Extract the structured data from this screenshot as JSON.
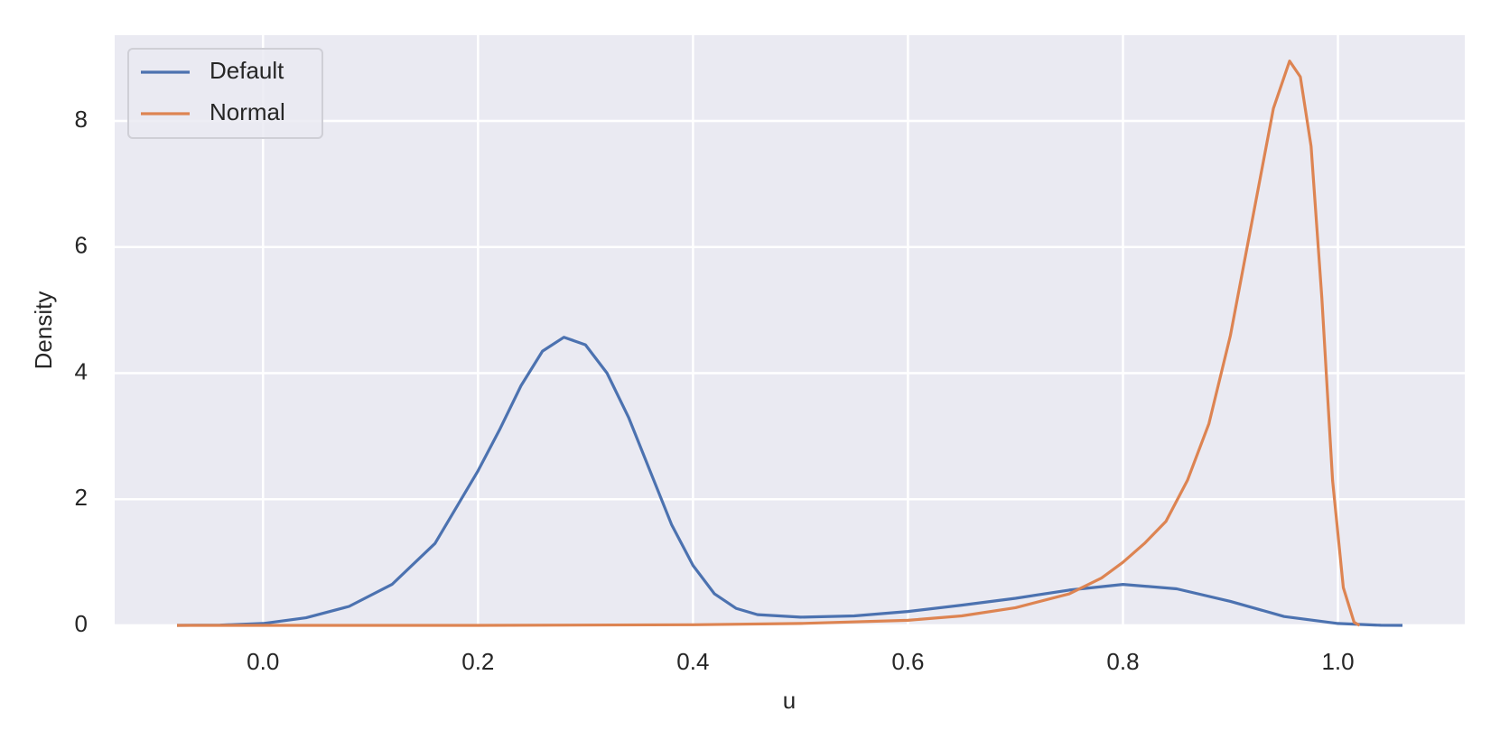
{
  "chart_data": {
    "type": "line",
    "xlabel": "u",
    "ylabel": "Density",
    "xlim": [
      -0.138,
      1.118
    ],
    "ylim": [
      0,
      9.36
    ],
    "xticks": [
      {
        "value": 0,
        "label": "0.0"
      },
      0.2,
      0.4,
      0.6,
      0.8,
      {
        "value": 1,
        "label": "1.0"
      }
    ],
    "yticks": [
      0,
      2,
      4,
      6,
      8
    ],
    "grid": true,
    "legend": "upper left",
    "series": [
      {
        "name": "Default",
        "color": "#4c72b0",
        "x": [
          -0.08,
          -0.04,
          0,
          0.04,
          0.08,
          0.12,
          0.16,
          0.2,
          0.22,
          0.24,
          0.26,
          0.28,
          0.3,
          0.32,
          0.34,
          0.36,
          0.38,
          0.4,
          0.42,
          0.44,
          0.46,
          0.5,
          0.55,
          0.6,
          0.65,
          0.7,
          0.75,
          0.8,
          0.85,
          0.9,
          0.95,
          1.0,
          1.04,
          1.06
        ],
        "values": [
          0,
          0.005,
          0.03,
          0.12,
          0.3,
          0.65,
          1.3,
          2.45,
          3.1,
          3.8,
          4.35,
          4.57,
          4.45,
          4.0,
          3.3,
          2.45,
          1.6,
          0.95,
          0.5,
          0.27,
          0.17,
          0.13,
          0.15,
          0.22,
          0.32,
          0.43,
          0.56,
          0.65,
          0.58,
          0.38,
          0.14,
          0.03,
          0.002,
          0
        ]
      },
      {
        "name": "Normal",
        "color": "#dd8452",
        "x": [
          -0.08,
          0.2,
          0.4,
          0.5,
          0.6,
          0.65,
          0.7,
          0.75,
          0.78,
          0.8,
          0.82,
          0.84,
          0.86,
          0.88,
          0.9,
          0.92,
          0.94,
          0.955,
          0.965,
          0.975,
          0.985,
          0.995,
          1.005,
          1.015,
          1.02
        ],
        "values": [
          0,
          0,
          0.01,
          0.03,
          0.08,
          0.15,
          0.28,
          0.5,
          0.75,
          1.0,
          1.3,
          1.65,
          2.3,
          3.2,
          4.6,
          6.4,
          8.2,
          8.95,
          8.7,
          7.6,
          5.2,
          2.3,
          0.6,
          0.05,
          0
        ]
      }
    ]
  }
}
